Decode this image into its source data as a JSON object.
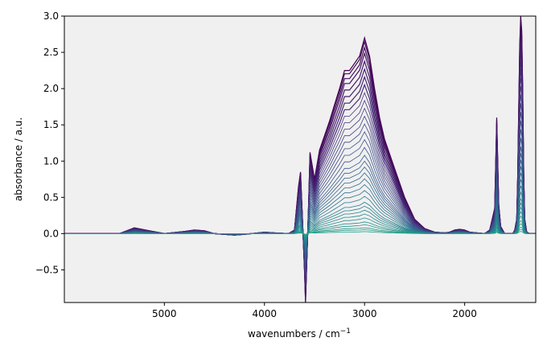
{
  "chart_data": {
    "type": "line",
    "title": "",
    "xlabel": "wavenumbers / cm",
    "xlabel_superscript": "−1",
    "ylabel": "absorbance / a.u.",
    "x_reversed": true,
    "xlim": [
      5999,
      1290
    ],
    "ylim": [
      -0.95,
      3.0
    ],
    "grid": false,
    "legend": "none",
    "background": "#f0f0f0",
    "colormap": [
      "#440154",
      "#46337e",
      "#365c8d",
      "#277f8e",
      "#1fa187"
    ],
    "x_ticks": [
      5000,
      4000,
      3000,
      2000
    ],
    "x_tick_labels": [
      "5000",
      "4000",
      "3000",
      "2000"
    ],
    "y_ticks": [
      -0.5,
      0.0,
      0.5,
      1.0,
      1.5,
      2.0,
      2.5,
      3.0
    ],
    "y_tick_labels": [
      "−0.5",
      "0.0",
      "0.5",
      "1.0",
      "1.5",
      "2.0",
      "2.5",
      "3.0"
    ],
    "x": [
      5999,
      5450,
      5300,
      5150,
      5000,
      4800,
      4700,
      4600,
      4500,
      4300,
      4200,
      4000,
      3900,
      3760,
      3700,
      3660,
      3640,
      3620,
      3600,
      3590,
      3560,
      3545,
      3500,
      3450,
      3400,
      3350,
      3300,
      3250,
      3200,
      3150,
      3100,
      3050,
      3000,
      2950,
      2900,
      2850,
      2800,
      2700,
      2600,
      2500,
      2400,
      2300,
      2200,
      2150,
      2100,
      2050,
      2000,
      1950,
      1800,
      1750,
      1700,
      1680,
      1660,
      1640,
      1620,
      1600,
      1560,
      1520,
      1500,
      1480,
      1470,
      1460,
      1450,
      1440,
      1430,
      1420,
      1410,
      1400,
      1380,
      1350,
      1300,
      1290
    ],
    "top_series": [
      0,
      0,
      0.08,
      0.04,
      0,
      0.03,
      0.05,
      0.04,
      0,
      -0.02,
      -0.01,
      0.02,
      0.01,
      0,
      0.05,
      0.65,
      0.85,
      0.2,
      -0.5,
      -0.95,
      0.35,
      1.12,
      0.75,
      1.15,
      1.35,
      1.55,
      1.78,
      2.0,
      2.25,
      2.25,
      2.35,
      2.45,
      2.7,
      2.45,
      2.0,
      1.6,
      1.3,
      0.9,
      0.5,
      0.2,
      0.07,
      0.02,
      0.01,
      0.02,
      0.05,
      0.06,
      0.05,
      0.02,
      0.0,
      0.05,
      0.35,
      1.6,
      0.4,
      0.1,
      0.05,
      0.0,
      0.0,
      0.0,
      0.05,
      0.2,
      0.8,
      1.7,
      2.6,
      3.0,
      2.8,
      2.0,
      0.8,
      0.2,
      0.02,
      0.0,
      0.0,
      0.0
    ],
    "series_scales": [
      1.0,
      0.98,
      0.95,
      0.92,
      0.88,
      0.84,
      0.8,
      0.76,
      0.72,
      0.68,
      0.64,
      0.6,
      0.56,
      0.52,
      0.48,
      0.44,
      0.4,
      0.37,
      0.34,
      0.31,
      0.28,
      0.25,
      0.22,
      0.19,
      0.16,
      0.14,
      0.12,
      0.1,
      0.08,
      0.06,
      0.045,
      0.03,
      0.02,
      0.01
    ]
  }
}
